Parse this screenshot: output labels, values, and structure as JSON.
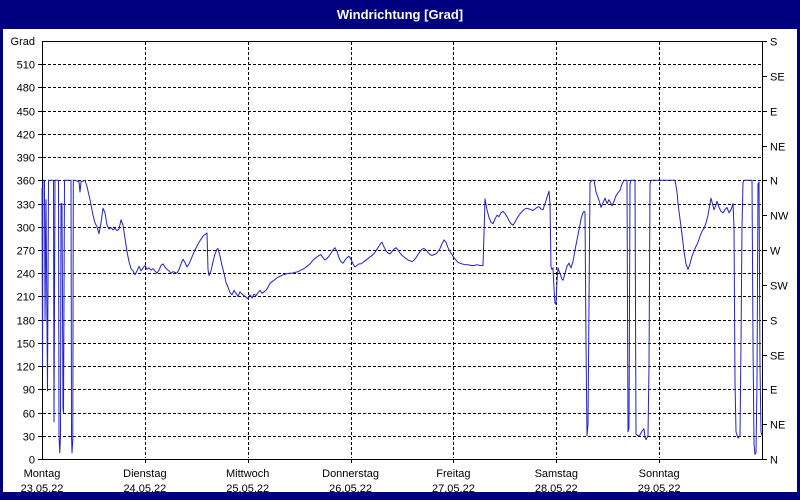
{
  "window": {
    "title": "Windrichtung [Grad]",
    "title_bg": "#000080",
    "title_fg": "#ffffff"
  },
  "y_axis": {
    "label": "Grad",
    "tick_step": 30,
    "ticks": [
      0,
      30,
      60,
      90,
      120,
      150,
      180,
      210,
      240,
      270,
      300,
      330,
      360,
      390,
      420,
      450,
      480,
      510
    ],
    "max": 540
  },
  "right_axis": {
    "ticks": [
      {
        "deg": 540,
        "label": "S"
      },
      {
        "deg": 495,
        "label": "SE"
      },
      {
        "deg": 450,
        "label": "E"
      },
      {
        "deg": 405,
        "label": "NE"
      },
      {
        "deg": 360,
        "label": "N"
      },
      {
        "deg": 315,
        "label": "NW"
      },
      {
        "deg": 270,
        "label": "W"
      },
      {
        "deg": 225,
        "label": "SW"
      },
      {
        "deg": 180,
        "label": "S"
      },
      {
        "deg": 135,
        "label": "SE"
      },
      {
        "deg": 90,
        "label": "E"
      },
      {
        "deg": 45,
        "label": "NE"
      },
      {
        "deg": 0,
        "label": "N"
      }
    ]
  },
  "x_axis": {
    "days": [
      {
        "name": "Montag",
        "date": "23.05.22"
      },
      {
        "name": "Dienstag",
        "date": "24.05.22"
      },
      {
        "name": "Mittwoch",
        "date": "25.05.22"
      },
      {
        "name": "Donnerstag",
        "date": "26.05.22"
      },
      {
        "name": "Freitag",
        "date": "27.05.22"
      },
      {
        "name": "Samstag",
        "date": "28.05.22"
      },
      {
        "name": "Sonntag",
        "date": "29.05.22"
      }
    ]
  },
  "chart_data": {
    "type": "line",
    "series_name": "Windrichtung",
    "unit": "Grad",
    "color": "#2222cc",
    "grid": true,
    "x_unit": "hours_since_2022-05-23_00:00",
    "x_range": [
      0,
      168
    ],
    "y_range": [
      0,
      540
    ],
    "points": [
      [
        0,
        350
      ],
      [
        0.12,
        120
      ],
      [
        0.23,
        360
      ],
      [
        0.58,
        360
      ],
      [
        0.7,
        180
      ],
      [
        0.93,
        335
      ],
      [
        1.28,
        88
      ],
      [
        1.52,
        360
      ],
      [
        2.68,
        360
      ],
      [
        2.8,
        48
      ],
      [
        3.03,
        360
      ],
      [
        3.85,
        360
      ],
      [
        3.97,
        30
      ],
      [
        4.15,
        8
      ],
      [
        4.32,
        30
      ],
      [
        4.43,
        330
      ],
      [
        4.67,
        330
      ],
      [
        4.9,
        65
      ],
      [
        5.02,
        60
      ],
      [
        5.25,
        360
      ],
      [
        6.77,
        360
      ],
      [
        6.88,
        30
      ],
      [
        7.0,
        8
      ],
      [
        7.19,
        25
      ],
      [
        7.3,
        360
      ],
      [
        7.7,
        360
      ],
      [
        8.63,
        358
      ],
      [
        8.87,
        345
      ],
      [
        9.1,
        358
      ],
      [
        10.03,
        360
      ],
      [
        10.5,
        352
      ],
      [
        11.2,
        335
      ],
      [
        11.9,
        315
      ],
      [
        12.37,
        305
      ],
      [
        12.83,
        300
      ],
      [
        13.3,
        291
      ],
      [
        13.77,
        305
      ],
      [
        14.23,
        324
      ],
      [
        14.7,
        318
      ],
      [
        15.17,
        302
      ],
      [
        15.63,
        297
      ],
      [
        16.1,
        299
      ],
      [
        16.57,
        296
      ],
      [
        17.03,
        298
      ],
      [
        17.5,
        295
      ],
      [
        17.97,
        297
      ],
      [
        18.43,
        309
      ],
      [
        18.9,
        302
      ],
      [
        19.37,
        285
      ],
      [
        19.83,
        268
      ],
      [
        20.3,
        255
      ],
      [
        20.77,
        246
      ],
      [
        21.23,
        243
      ],
      [
        21.7,
        238
      ],
      [
        22.17,
        243
      ],
      [
        22.63,
        249
      ],
      [
        23.1,
        243
      ],
      [
        23.57,
        247
      ],
      [
        24.03,
        250
      ],
      [
        24.5,
        245
      ],
      [
        24.97,
        247
      ],
      [
        25.43,
        244
      ],
      [
        25.9,
        246
      ],
      [
        26.37,
        243
      ],
      [
        26.83,
        240
      ],
      [
        27.3,
        244
      ],
      [
        27.77,
        250
      ],
      [
        28.23,
        252
      ],
      [
        28.7,
        248
      ],
      [
        29.17,
        245
      ],
      [
        29.63,
        243
      ],
      [
        30.1,
        240
      ],
      [
        30.57,
        242
      ],
      [
        31.03,
        241
      ],
      [
        31.5,
        240
      ],
      [
        31.97,
        245
      ],
      [
        32.43,
        252
      ],
      [
        32.9,
        258
      ],
      [
        33.37,
        254
      ],
      [
        33.83,
        248
      ],
      [
        34.3,
        252
      ],
      [
        34.77,
        258
      ],
      [
        35.23,
        264
      ],
      [
        35.7,
        270
      ],
      [
        36.17,
        275
      ],
      [
        36.63,
        280
      ],
      [
        37.1,
        284
      ],
      [
        37.57,
        288
      ],
      [
        38.03,
        290
      ],
      [
        38.5,
        292
      ],
      [
        38.73,
        245
      ],
      [
        38.97,
        237
      ],
      [
        39.43,
        243
      ],
      [
        39.9,
        255
      ],
      [
        40.37,
        265
      ],
      [
        40.83,
        271
      ],
      [
        41.07,
        272
      ],
      [
        41.53,
        262
      ],
      [
        42.0,
        250
      ],
      [
        42.47,
        240
      ],
      [
        42.93,
        228
      ],
      [
        43.4,
        222
      ],
      [
        43.87,
        215
      ],
      [
        44.33,
        212
      ],
      [
        44.8,
        218
      ],
      [
        45.27,
        214
      ],
      [
        45.73,
        210
      ],
      [
        46.2,
        216
      ],
      [
        46.67,
        213
      ],
      [
        47.13,
        211
      ],
      [
        47.6,
        209
      ],
      [
        48.07,
        207
      ],
      [
        48.53,
        212
      ],
      [
        49.0,
        208
      ],
      [
        49.47,
        213
      ],
      [
        49.93,
        211
      ],
      [
        50.4,
        215
      ],
      [
        50.87,
        218
      ],
      [
        51.33,
        214
      ],
      [
        51.8,
        216
      ],
      [
        52.27,
        218
      ],
      [
        52.73,
        222
      ],
      [
        53.2,
        227
      ],
      [
        53.67,
        229
      ],
      [
        54.13,
        231
      ],
      [
        54.6,
        233
      ],
      [
        55.07,
        235
      ],
      [
        55.53,
        236
      ],
      [
        56.23,
        238
      ],
      [
        56.93,
        239
      ],
      [
        57.63,
        240
      ],
      [
        58.33,
        240
      ],
      [
        59.03,
        241
      ],
      [
        59.73,
        242
      ],
      [
        60.43,
        244
      ],
      [
        61.13,
        246
      ],
      [
        61.83,
        249
      ],
      [
        62.53,
        252
      ],
      [
        63.23,
        257
      ],
      [
        63.93,
        260
      ],
      [
        64.63,
        263
      ],
      [
        65.1,
        264
      ],
      [
        65.57,
        260
      ],
      [
        66.03,
        257
      ],
      [
        66.5,
        259
      ],
      [
        66.97,
        262
      ],
      [
        67.43,
        266
      ],
      [
        67.9,
        270
      ],
      [
        68.37,
        273
      ],
      [
        68.83,
        268
      ],
      [
        69.3,
        260
      ],
      [
        69.77,
        255
      ],
      [
        70.23,
        253
      ],
      [
        70.7,
        257
      ],
      [
        71.17,
        260
      ],
      [
        71.63,
        262
      ],
      [
        72.1,
        258
      ],
      [
        72.57,
        252
      ],
      [
        73.03,
        248
      ],
      [
        73.5,
        250
      ],
      [
        73.97,
        252
      ],
      [
        74.43,
        252
      ],
      [
        74.9,
        254
      ],
      [
        75.37,
        256
      ],
      [
        75.83,
        258
      ],
      [
        76.3,
        260
      ],
      [
        76.77,
        262
      ],
      [
        77.23,
        264
      ],
      [
        77.7,
        267
      ],
      [
        78.17,
        271
      ],
      [
        78.63,
        275
      ],
      [
        79.1,
        279
      ],
      [
        79.33,
        280
      ],
      [
        79.8,
        274
      ],
      [
        80.27,
        269
      ],
      [
        80.73,
        266
      ],
      [
        81.2,
        265
      ],
      [
        81.67,
        268
      ],
      [
        82.13,
        271
      ],
      [
        82.6,
        273
      ],
      [
        83.07,
        270
      ],
      [
        83.53,
        266
      ],
      [
        84.0,
        263
      ],
      [
        84.47,
        261
      ],
      [
        84.93,
        259
      ],
      [
        85.4,
        257
      ],
      [
        85.87,
        256
      ],
      [
        86.33,
        255
      ],
      [
        86.8,
        257
      ],
      [
        87.27,
        260
      ],
      [
        87.73,
        264
      ],
      [
        88.2,
        268
      ],
      [
        88.67,
        271
      ],
      [
        89.13,
        272
      ],
      [
        89.6,
        270
      ],
      [
        90.07,
        267
      ],
      [
        90.53,
        264
      ],
      [
        91.0,
        263
      ],
      [
        91.47,
        264
      ],
      [
        91.93,
        265
      ],
      [
        92.4,
        268
      ],
      [
        92.87,
        272
      ],
      [
        93.33,
        278
      ],
      [
        93.8,
        283
      ],
      [
        94.27,
        280
      ],
      [
        94.73,
        273
      ],
      [
        95.2,
        268
      ],
      [
        95.67,
        264
      ],
      [
        96.13,
        260
      ],
      [
        96.6,
        257
      ],
      [
        97.07,
        254
      ],
      [
        97.53,
        253
      ],
      [
        98.0,
        252
      ],
      [
        98.7,
        251
      ],
      [
        99.4,
        251
      ],
      [
        100.1,
        250
      ],
      [
        100.8,
        250
      ],
      [
        101.5,
        251
      ],
      [
        102.2,
        250
      ],
      [
        102.9,
        250
      ],
      [
        103.13,
        290
      ],
      [
        103.37,
        336
      ],
      [
        103.83,
        322
      ],
      [
        104.3,
        312
      ],
      [
        104.77,
        306
      ],
      [
        105.23,
        304
      ],
      [
        105.7,
        310
      ],
      [
        106.17,
        315
      ],
      [
        106.63,
        313
      ],
      [
        107.1,
        318
      ],
      [
        107.57,
        320
      ],
      [
        108.03,
        317
      ],
      [
        108.5,
        313
      ],
      [
        108.97,
        308
      ],
      [
        109.43,
        304
      ],
      [
        109.9,
        302
      ],
      [
        110.37,
        306
      ],
      [
        110.83,
        311
      ],
      [
        111.3,
        315
      ],
      [
        111.77,
        318
      ],
      [
        112.23,
        321
      ],
      [
        112.7,
        323
      ],
      [
        113.17,
        324
      ],
      [
        113.63,
        323
      ],
      [
        114.1,
        322
      ],
      [
        114.57,
        321
      ],
      [
        115.03,
        323
      ],
      [
        115.5,
        325
      ],
      [
        115.97,
        326
      ],
      [
        116.43,
        323
      ],
      [
        116.9,
        322
      ],
      [
        117.37,
        330
      ],
      [
        117.83,
        338
      ],
      [
        118.3,
        346
      ],
      [
        118.53,
        330
      ],
      [
        118.77,
        248
      ],
      [
        119.0,
        245
      ],
      [
        119.23,
        247
      ],
      [
        119.47,
        220
      ],
      [
        119.7,
        201
      ],
      [
        119.93,
        200
      ],
      [
        120.17,
        230
      ],
      [
        120.4,
        247
      ],
      [
        120.63,
        243
      ],
      [
        120.87,
        240
      ],
      [
        121.1,
        236
      ],
      [
        121.33,
        232
      ],
      [
        121.57,
        231
      ],
      [
        122.03,
        240
      ],
      [
        122.5,
        249
      ],
      [
        122.97,
        253
      ],
      [
        123.43,
        247
      ],
      [
        123.9,
        255
      ],
      [
        124.37,
        270
      ],
      [
        124.83,
        283
      ],
      [
        125.3,
        296
      ],
      [
        125.77,
        310
      ],
      [
        126.23,
        318
      ],
      [
        126.47,
        320
      ],
      [
        126.7,
        319
      ],
      [
        126.93,
        150
      ],
      [
        127.17,
        30
      ],
      [
        127.4,
        45
      ],
      [
        127.63,
        200
      ],
      [
        127.87,
        357
      ],
      [
        128.33,
        360
      ],
      [
        128.8,
        360
      ],
      [
        129.27,
        345
      ],
      [
        129.73,
        338
      ],
      [
        130.2,
        330
      ],
      [
        130.43,
        325
      ],
      [
        130.9,
        331
      ],
      [
        131.37,
        337
      ],
      [
        131.83,
        330
      ],
      [
        132.3,
        335
      ],
      [
        132.77,
        330
      ],
      [
        133.0,
        327
      ],
      [
        133.47,
        333
      ],
      [
        133.93,
        340
      ],
      [
        134.4,
        344
      ],
      [
        134.87,
        347
      ],
      [
        135.33,
        355
      ],
      [
        135.8,
        360
      ],
      [
        136.27,
        360
      ],
      [
        136.5,
        360
      ],
      [
        136.73,
        35
      ],
      [
        136.97,
        40
      ],
      [
        137.2,
        355
      ],
      [
        137.43,
        360
      ],
      [
        138.37,
        360
      ],
      [
        138.6,
        32
      ],
      [
        139.07,
        30
      ],
      [
        139.53,
        31
      ],
      [
        140.0,
        36
      ],
      [
        140.47,
        39
      ],
      [
        140.7,
        28
      ],
      [
        140.93,
        25
      ],
      [
        141.4,
        30
      ],
      [
        141.63,
        120
      ],
      [
        141.87,
        355
      ],
      [
        142.1,
        360
      ],
      [
        147.7,
        360
      ],
      [
        148.17,
        345
      ],
      [
        148.4,
        330
      ],
      [
        148.87,
        310
      ],
      [
        149.33,
        290
      ],
      [
        149.8,
        268
      ],
      [
        150.27,
        252
      ],
      [
        150.73,
        245
      ],
      [
        151.2,
        252
      ],
      [
        151.67,
        262
      ],
      [
        152.37,
        272
      ],
      [
        153.07,
        280
      ],
      [
        153.53,
        288
      ],
      [
        154.0,
        294
      ],
      [
        154.47,
        298
      ],
      [
        154.93,
        305
      ],
      [
        155.4,
        315
      ],
      [
        155.87,
        330
      ],
      [
        156.1,
        337
      ],
      [
        156.57,
        327
      ],
      [
        156.8,
        322
      ],
      [
        157.27,
        328
      ],
      [
        157.5,
        333
      ],
      [
        157.97,
        325
      ],
      [
        158.43,
        320
      ],
      [
        158.9,
        318
      ],
      [
        159.37,
        322
      ],
      [
        159.83,
        325
      ],
      [
        160.3,
        318
      ],
      [
        160.77,
        322
      ],
      [
        161.23,
        330
      ],
      [
        161.47,
        300
      ],
      [
        161.7,
        100
      ],
      [
        161.93,
        35
      ],
      [
        162.4,
        27
      ],
      [
        162.87,
        30
      ],
      [
        163.1,
        150
      ],
      [
        163.33,
        300
      ],
      [
        163.57,
        357
      ],
      [
        163.8,
        360
      ],
      [
        165.67,
        360
      ],
      [
        165.9,
        150
      ],
      [
        166.13,
        20
      ],
      [
        166.37,
        6
      ],
      [
        166.6,
        8
      ],
      [
        166.83,
        100
      ],
      [
        167.07,
        355
      ],
      [
        167.3,
        358
      ],
      [
        167.53,
        120
      ],
      [
        167.77,
        35
      ],
      [
        168.0,
        30
      ]
    ]
  }
}
